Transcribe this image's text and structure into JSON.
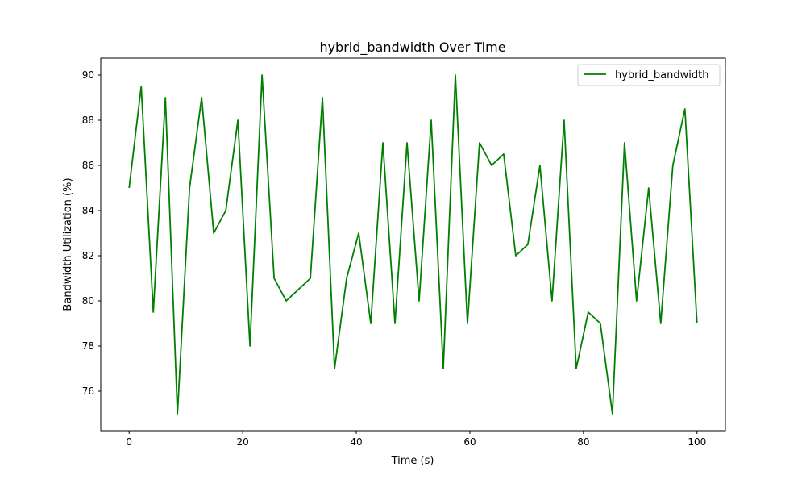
{
  "chart_data": {
    "type": "line",
    "title": "hybrid_bandwidth Over Time",
    "xlabel": "Time (s)",
    "ylabel": "Bandwidth Utilization (%)",
    "xlim": [
      -5,
      105
    ],
    "ylim": [
      74.25,
      90.75
    ],
    "x_ticks": [
      0,
      20,
      40,
      60,
      80,
      100
    ],
    "y_ticks": [
      76,
      78,
      80,
      82,
      84,
      86,
      88,
      90
    ],
    "grid": false,
    "legend_position": "top-right",
    "line_color": "#008000",
    "series": [
      {
        "name": "hybrid_bandwidth",
        "x": [
          0,
          2.128,
          4.255,
          6.383,
          8.511,
          10.638,
          12.766,
          14.894,
          17.021,
          19.149,
          21.277,
          23.404,
          25.532,
          27.66,
          29.787,
          31.915,
          34.043,
          36.17,
          38.298,
          40.426,
          42.553,
          44.681,
          46.809,
          48.936,
          51.064,
          53.191,
          55.319,
          57.447,
          59.574,
          61.702,
          63.83,
          65.957,
          68.085,
          70.213,
          72.34,
          74.468,
          76.596,
          78.723,
          80.851,
          82.979,
          85.106,
          87.234,
          89.362,
          91.489,
          93.617,
          95.745,
          97.872,
          100
        ],
        "values": [
          85,
          89.5,
          79.5,
          89,
          75,
          85,
          89,
          83,
          84,
          88,
          78,
          90,
          81,
          80,
          80.5,
          81,
          89,
          77,
          81,
          83,
          79,
          87,
          79,
          87,
          80,
          88,
          77,
          90,
          79,
          87,
          86,
          86.5,
          82,
          82.5,
          86,
          80,
          88,
          77,
          79.5,
          79,
          75,
          87,
          80,
          85,
          79,
          86,
          88.5,
          79
        ]
      }
    ]
  }
}
